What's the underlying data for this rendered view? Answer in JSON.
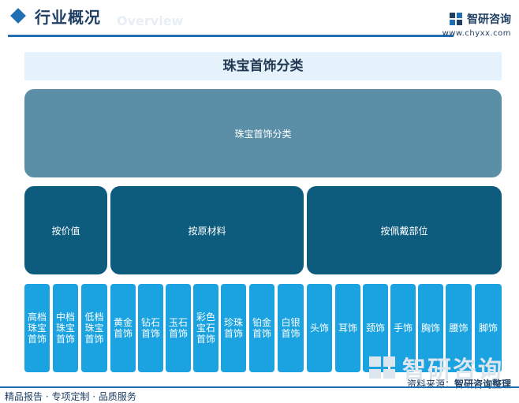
{
  "header": {
    "title": "行业概况",
    "subtitle": "Overview",
    "logo_text": "智研咨询",
    "logo_url": "www.chyxx.com"
  },
  "diagram": {
    "title": "珠宝首饰分类",
    "root": "珠宝首饰分类",
    "categories": [
      "按价值",
      "按原材料",
      "按佩戴部位"
    ],
    "leaves": [
      "高档\n珠宝\n首饰",
      "中档\n珠宝\n首饰",
      "低档\n珠宝\n首饰",
      "黄金\n首饰",
      "钻石\n首饰",
      "玉石\n首饰",
      "彩色\n宝石\n首饰",
      "珍珠\n首饰",
      "铂金\n首饰",
      "白银\n首饰",
      "头饰",
      "耳饰",
      "颈饰",
      "手饰",
      "胸饰",
      "腰饰",
      "脚饰"
    ]
  },
  "watermark": {
    "text": "智研咨询"
  },
  "footer": {
    "source_label": "资料来源：",
    "source_value": "智研咨询整理",
    "slogan": "精品报告 · 专项定制 · 品质服务"
  },
  "colors": {
    "accent": "#1f6fb2",
    "root_box": "#5b8fa8",
    "category_box": "#0d5b7d",
    "leaf_box": "#1aa3e0",
    "title_band": "#e6f2fb"
  }
}
